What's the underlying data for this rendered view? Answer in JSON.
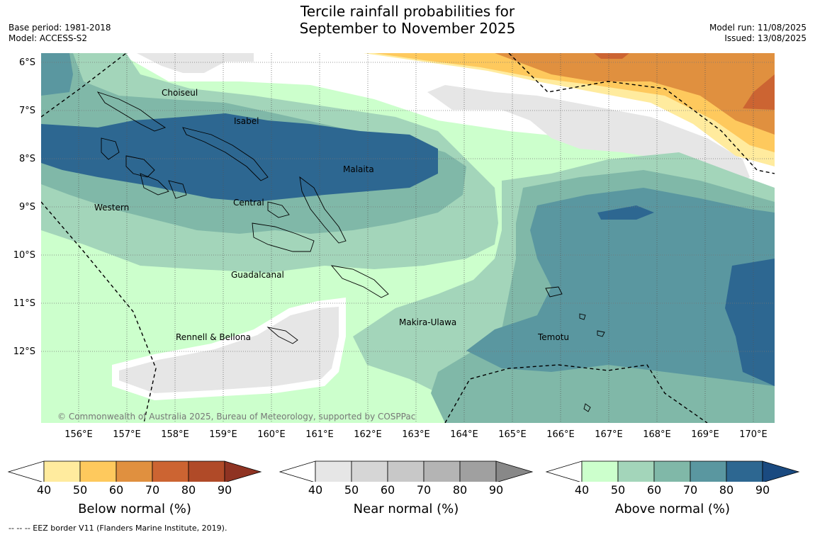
{
  "title_line1": "Tercile rainfall probabilities for",
  "title_line2": "September to November 2025",
  "base_period": "Base period: 1981-2018",
  "model": "Model: ACCESS-S2",
  "model_run": "Model run: 11/08/2025",
  "issued": "Issued: 13/08/2025",
  "copyright": "© Commonwealth of Australia 2025, Bureau of Meteorology, supported by COSPPac",
  "lat_labels": [
    "6°S",
    "7°S",
    "8°S",
    "9°S",
    "10°S",
    "11°S",
    "12°S"
  ],
  "lon_labels": [
    "156°E",
    "157°E",
    "158°E",
    "159°E",
    "160°E",
    "161°E",
    "162°E",
    "163°E",
    "164°E",
    "165°E",
    "166°E",
    "167°E",
    "168°E",
    "169°E",
    "170°E"
  ],
  "regions": {
    "choiseul": "Choiseul",
    "isabel": "Isabel",
    "malaita": "Malaita",
    "western": "Western",
    "central": "Central",
    "guadalcanal": "Guadalcanal",
    "makira": "Makira-Ulawa",
    "rennell": "Rennell & Bellona",
    "temotu": "Temotu"
  },
  "colorbars": {
    "ticks": [
      "40",
      "50",
      "60",
      "70",
      "80",
      "90"
    ],
    "below": {
      "title": "Below normal (%)",
      "colors": [
        "#ffffff",
        "#ffeb9e",
        "#fec95d",
        "#e0903f",
        "#cc6432",
        "#b04a28",
        "#8f3322"
      ]
    },
    "near": {
      "title": "Near normal (%)",
      "colors": [
        "#ffffff",
        "#e6e6e6",
        "#d6d6d6",
        "#c8c8c8",
        "#b4b4b4",
        "#a0a0a0",
        "#888888"
      ]
    },
    "above": {
      "title": "Above normal (%)",
      "colors": [
        "#ffffff",
        "#ccffcc",
        "#a3d5ba",
        "#80b8a8",
        "#5a97a0",
        "#2d6791",
        "#1a4a80"
      ]
    }
  },
  "footer": "--  --  -- EEZ border V11 (Flanders Marine Institute, 2019)."
}
